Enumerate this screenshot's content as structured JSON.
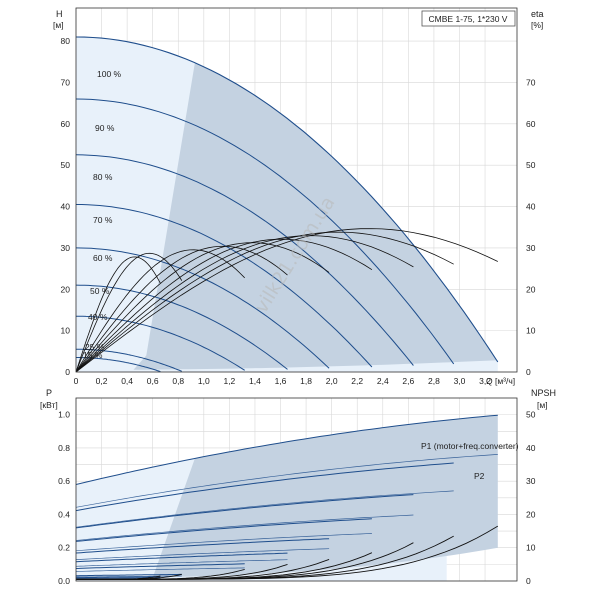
{
  "chart_data": [
    {
      "type": "line",
      "panel": "head",
      "title": "CMBE 1-75, 1*230 V",
      "ylabel_left": "H",
      "ylabel_left_unit": "[м]",
      "ylabel_right": "eta",
      "ylabel_right_unit": "[%]",
      "xlabel": "Q [м³/ч]",
      "xlim": [
        0,
        3.45
      ],
      "ylim_left": [
        0,
        88
      ],
      "ylim_right": [
        0,
        88
      ],
      "x_ticks": [
        "0",
        "0,2",
        "0,4",
        "0,6",
        "0,8",
        "1,0",
        "1,2",
        "1,4",
        "1,6",
        "1,8",
        "2,0",
        "2,2",
        "2,4",
        "2,6",
        "2,8",
        "3,0",
        "3,2"
      ],
      "y_ticks_left": [
        "0",
        "10",
        "20",
        "30",
        "40",
        "50",
        "60",
        "70",
        "80"
      ],
      "y_ticks_right": [
        "0",
        "10",
        "20",
        "30",
        "40",
        "50",
        "60",
        "70"
      ],
      "grid": true,
      "colors": {
        "curve": "#1f4e8c",
        "light_fill": "#e8f1fa",
        "dark_fill": "#c4d2e1",
        "efficiency": "#111111"
      },
      "speed_curves": [
        {
          "name": "100 %",
          "shutoff": 81,
          "qmax": 3.35
        },
        {
          "name": "90 %",
          "shutoff": 66,
          "qmax": 3.0
        },
        {
          "name": "80 %",
          "shutoff": 52.5,
          "qmax": 2.68
        },
        {
          "name": "70 %",
          "shutoff": 40.5,
          "qmax": 2.35
        },
        {
          "name": "60 %",
          "shutoff": 30,
          "qmax": 2.01
        },
        {
          "name": "50 %",
          "shutoff": 21,
          "qmax": 1.68
        },
        {
          "name": "40 %",
          "shutoff": 13.5,
          "qmax": 1.34
        },
        {
          "name": "25 %",
          "shutoff": 5.5,
          "qmax": 0.84
        },
        {
          "name": "15 %",
          "shutoff": 3.5,
          "qmax": 0.67
        }
      ],
      "labels": [
        "100 %",
        "90 %",
        "80 %",
        "70 %",
        "60 %",
        "50 %",
        "40 %",
        "25 %",
        "15 %"
      ]
    },
    {
      "type": "line",
      "panel": "power",
      "ylabel_left": "P",
      "ylabel_left_unit": "[кВт]",
      "ylabel_right": "NPSH",
      "ylabel_right_unit": "[м]",
      "xlim": [
        0,
        3.45
      ],
      "ylim_left": [
        0,
        1.1
      ],
      "ylim_right": [
        0,
        55
      ],
      "y_ticks_left": [
        "0.0",
        "0.2",
        "0.4",
        "0.6",
        "0.8",
        "1.0"
      ],
      "y_ticks_right": [
        "0",
        "10",
        "20",
        "30",
        "40",
        "50"
      ],
      "series_labels": [
        "P1 (motor+freq.converter)",
        "P2"
      ],
      "p1_max": 1.0,
      "p2_max": 0.83
    }
  ],
  "watermark": "vilk21.com.ua"
}
